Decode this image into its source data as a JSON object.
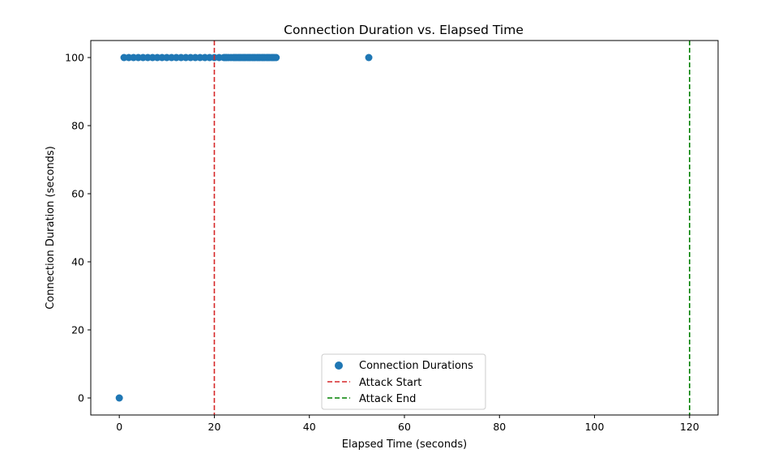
{
  "chart_data": {
    "type": "scatter",
    "title": "Connection Duration vs. Elapsed Time",
    "xlabel": "Elapsed Time (seconds)",
    "ylabel": "Connection Duration (seconds)",
    "xlim": [
      -6,
      126
    ],
    "ylim": [
      -5,
      105
    ],
    "xticks": [
      0,
      20,
      40,
      60,
      80,
      100,
      120
    ],
    "yticks": [
      0,
      20,
      40,
      60,
      80,
      100
    ],
    "grid": false,
    "legend_position": "lower-center",
    "series": [
      {
        "name": "Connection Durations",
        "color": "#1f77b4",
        "x": [
          0,
          1,
          2,
          3,
          4,
          5,
          6,
          7,
          8,
          9,
          10,
          11,
          12,
          13,
          14,
          15,
          16,
          17,
          18,
          19,
          20,
          21,
          22,
          22.3,
          22.6,
          23,
          23.5,
          24,
          24.3,
          24.6,
          25,
          25.3,
          25.6,
          26,
          26.3,
          26.6,
          27,
          27.3,
          27.6,
          28,
          28.3,
          28.6,
          29,
          29.3,
          29.6,
          30,
          30.3,
          30.6,
          31,
          31.3,
          31.6,
          32,
          32.3,
          32.6,
          33,
          52.5
        ],
        "y": [
          0,
          100,
          100,
          100,
          100,
          100,
          100,
          100,
          100,
          100,
          100,
          100,
          100,
          100,
          100,
          100,
          100,
          100,
          100,
          100,
          100,
          100,
          100,
          100,
          100,
          100,
          100,
          100,
          100,
          100,
          100,
          100,
          100,
          100,
          100,
          100,
          100,
          100,
          100,
          100,
          100,
          100,
          100,
          100,
          100,
          100,
          100,
          100,
          100,
          100,
          100,
          100,
          100,
          100,
          100,
          100
        ]
      }
    ],
    "vlines": [
      {
        "name": "Attack Start",
        "x": 20,
        "color": "#d62728",
        "style": "dashed"
      },
      {
        "name": "Attack End",
        "x": 120,
        "color": "#008000",
        "style": "dashed"
      }
    ]
  }
}
